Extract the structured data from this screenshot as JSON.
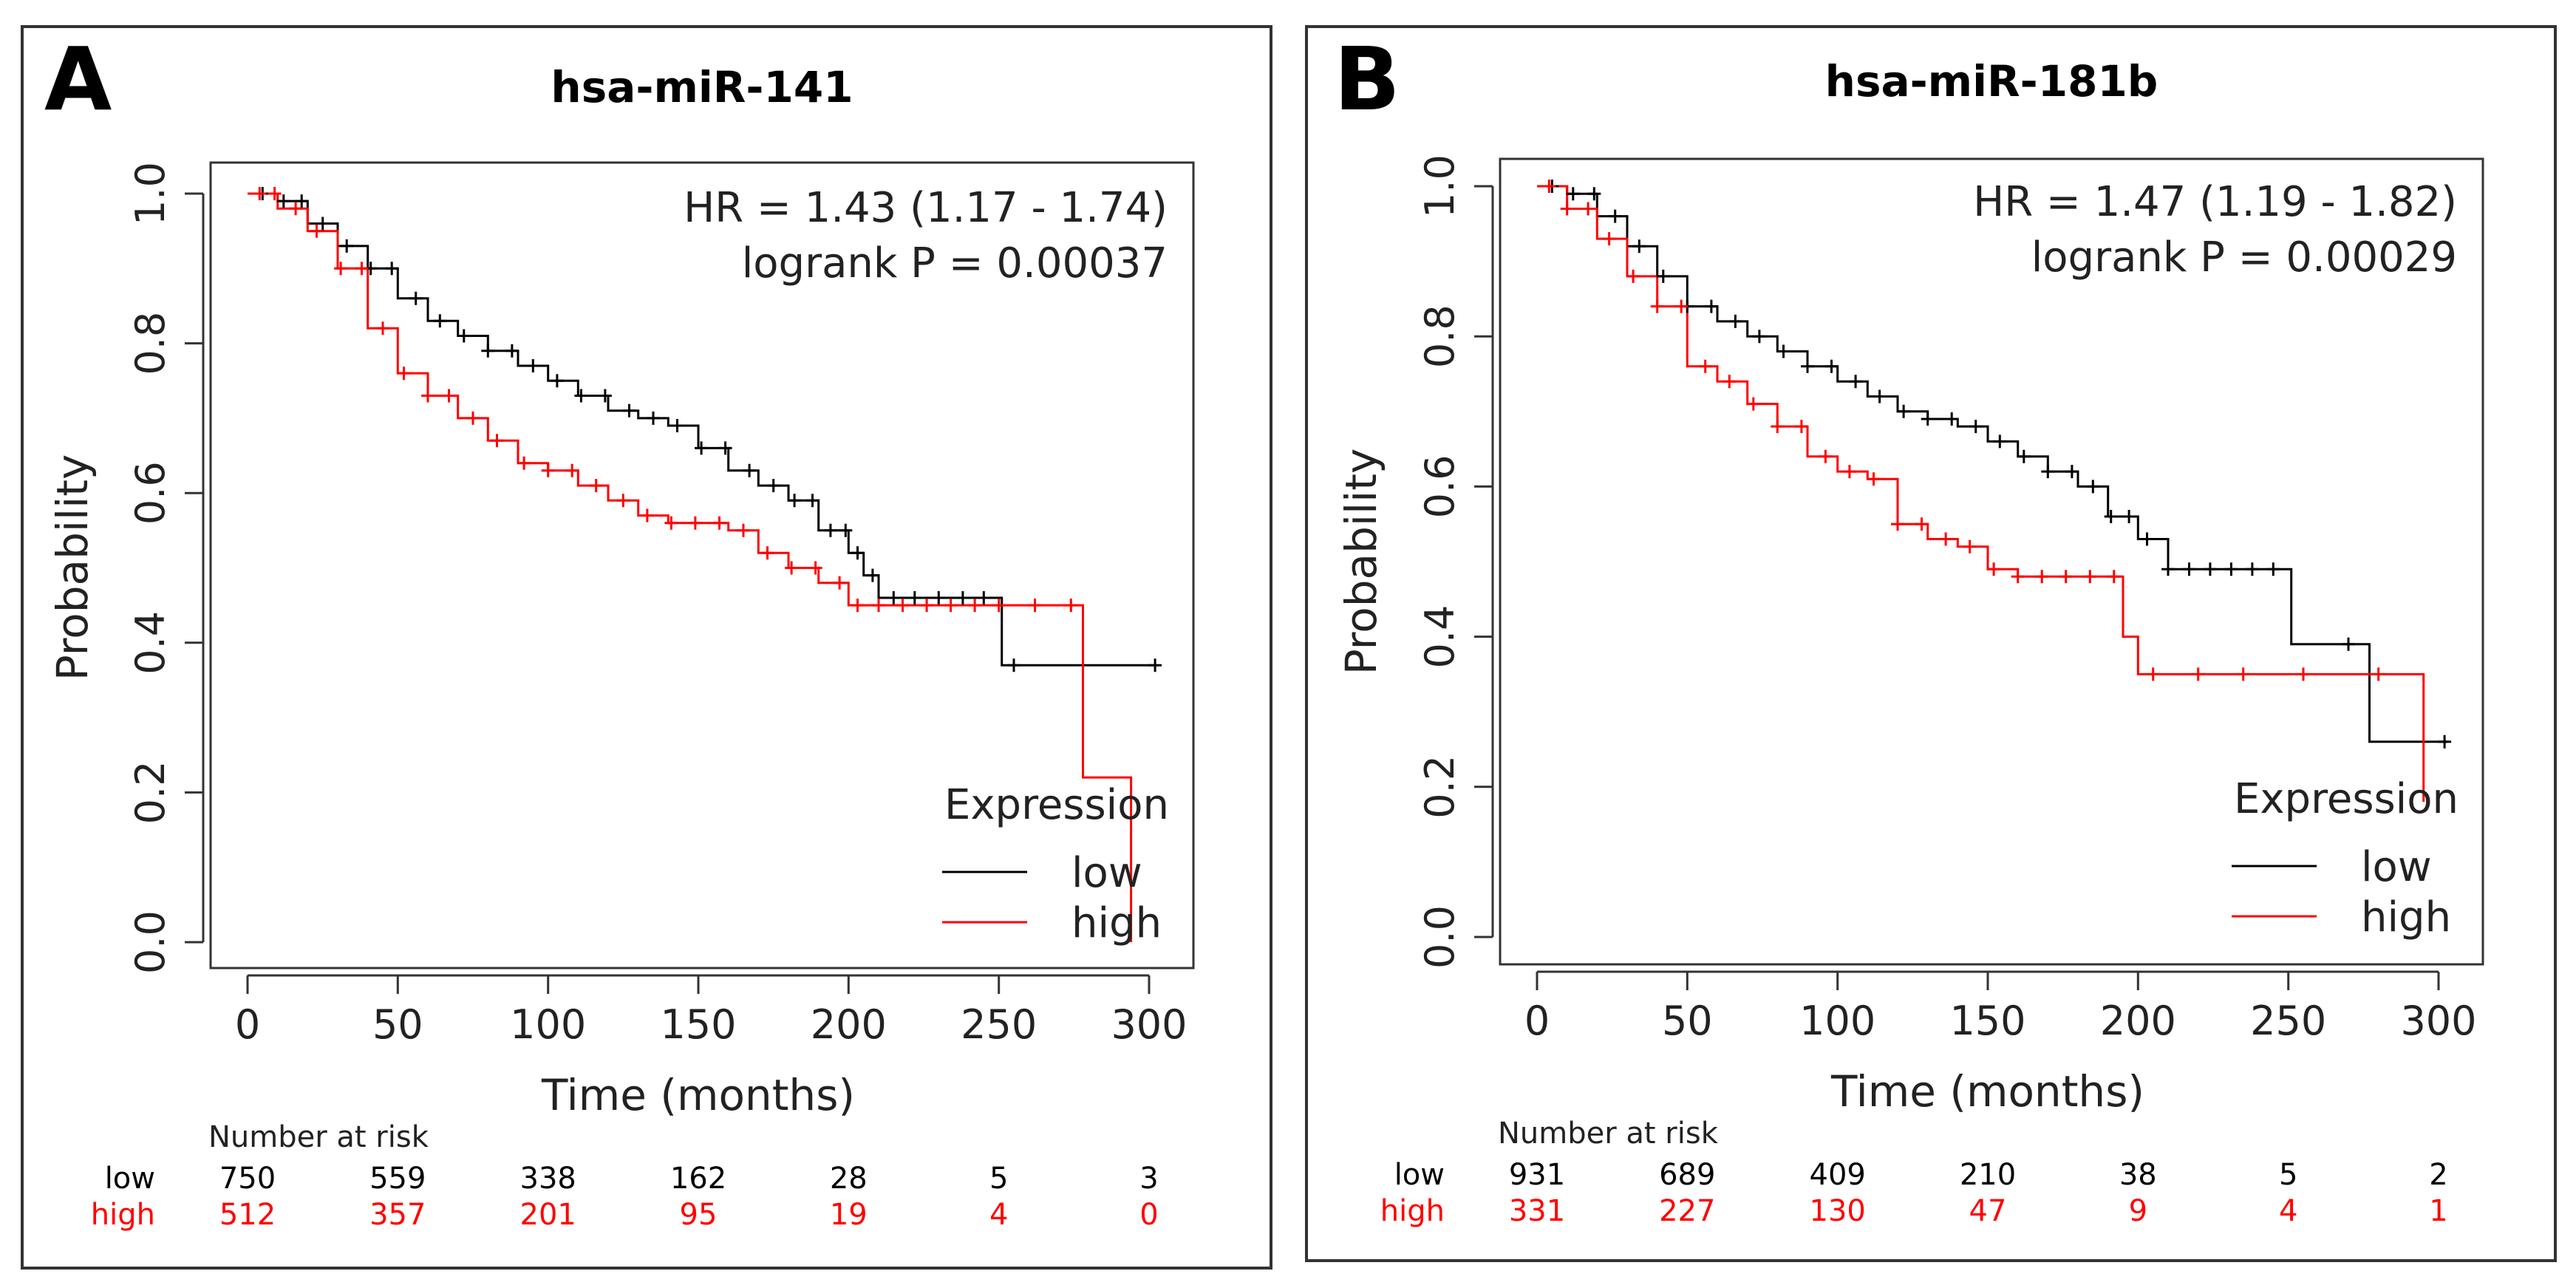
{
  "chart_data": [
    {
      "type": "line",
      "panel_letter": "A",
      "title": "hsa-miR-141",
      "xlabel": "Time (months)",
      "ylabel": "Probability",
      "xlim": [
        0,
        300
      ],
      "ylim": [
        0,
        1
      ],
      "xticks": [
        "0",
        "50",
        "100",
        "150",
        "200",
        "250",
        "300"
      ],
      "yticks": [
        "0.0",
        "0.2",
        "0.4",
        "0.6",
        "0.8",
        "1.0"
      ],
      "hr_text": "HR = 1.43 (1.17 - 1.74)",
      "p_text": "logrank P = 0.00037",
      "legend_title": "Expression",
      "legend_position": "bottom-right",
      "series": [
        {
          "name": "low",
          "color": "#000000",
          "x": [
            0,
            10,
            20,
            30,
            40,
            50,
            60,
            70,
            80,
            90,
            100,
            110,
            120,
            130,
            140,
            150,
            160,
            170,
            180,
            190,
            200,
            205,
            210,
            250,
            251,
            303
          ],
          "y": [
            1.0,
            0.99,
            0.96,
            0.93,
            0.9,
            0.86,
            0.83,
            0.81,
            0.79,
            0.77,
            0.75,
            0.73,
            0.71,
            0.7,
            0.69,
            0.66,
            0.63,
            0.61,
            0.59,
            0.55,
            0.52,
            0.49,
            0.46,
            0.46,
            0.37,
            0.37
          ],
          "censor_x": [
            5,
            12,
            18,
            25,
            33,
            41,
            48,
            56,
            64,
            72,
            80,
            88,
            95,
            103,
            111,
            119,
            127,
            135,
            143,
            151,
            159,
            167,
            175,
            182,
            188,
            194,
            199,
            203,
            208,
            215,
            222,
            230,
            238,
            245,
            255,
            302
          ]
        },
        {
          "name": "high",
          "color": "#ff0000",
          "x": [
            0,
            10,
            20,
            30,
            40,
            50,
            60,
            70,
            80,
            90,
            100,
            110,
            120,
            130,
            140,
            150,
            160,
            170,
            180,
            190,
            200,
            277,
            278,
            293,
            294
          ],
          "y": [
            1.0,
            0.98,
            0.95,
            0.9,
            0.82,
            0.76,
            0.73,
            0.7,
            0.67,
            0.64,
            0.63,
            0.61,
            0.59,
            0.57,
            0.56,
            0.56,
            0.55,
            0.52,
            0.5,
            0.48,
            0.45,
            0.45,
            0.22,
            0.22,
            0.0
          ],
          "censor_x": [
            4,
            9,
            16,
            23,
            31,
            38,
            45,
            52,
            60,
            67,
            75,
            83,
            92,
            100,
            108,
            116,
            125,
            133,
            141,
            149,
            157,
            165,
            173,
            181,
            189,
            197,
            203,
            210,
            218,
            226,
            234,
            242,
            250,
            262,
            274
          ]
        }
      ],
      "risk_table": {
        "title": "Number at risk",
        "rows": [
          {
            "label": "low",
            "color": "#000000",
            "values": [
              "750",
              "559",
              "338",
              "162",
              "28",
              "5",
              "3"
            ]
          },
          {
            "label": "high",
            "color": "#ff0000",
            "values": [
              "512",
              "357",
              "201",
              "95",
              "19",
              "4",
              "0"
            ]
          }
        ]
      }
    },
    {
      "type": "line",
      "panel_letter": "B",
      "title": "hsa-miR-181b",
      "xlabel": "Time (months)",
      "ylabel": "Probability",
      "xlim": [
        0,
        300
      ],
      "ylim": [
        0,
        1
      ],
      "xticks": [
        "0",
        "50",
        "100",
        "150",
        "200",
        "250",
        "300"
      ],
      "yticks": [
        "0.0",
        "0.2",
        "0.4",
        "0.6",
        "0.8",
        "1.0"
      ],
      "hr_text": "HR = 1.47 (1.19 - 1.82)",
      "p_text": "logrank P = 0.00029",
      "legend_title": "Expression",
      "legend_position": "bottom-right",
      "series": [
        {
          "name": "low",
          "color": "#000000",
          "x": [
            0,
            10,
            20,
            30,
            40,
            50,
            60,
            70,
            80,
            90,
            100,
            110,
            120,
            130,
            140,
            150,
            160,
            170,
            180,
            190,
            200,
            210,
            250,
            251,
            276,
            277,
            303
          ],
          "y": [
            1.0,
            0.99,
            0.96,
            0.92,
            0.88,
            0.84,
            0.82,
            0.8,
            0.78,
            0.76,
            0.74,
            0.72,
            0.7,
            0.69,
            0.68,
            0.66,
            0.64,
            0.62,
            0.6,
            0.56,
            0.53,
            0.49,
            0.49,
            0.39,
            0.39,
            0.26,
            0.26
          ],
          "censor_x": [
            5,
            12,
            19,
            26,
            34,
            42,
            50,
            58,
            66,
            74,
            82,
            90,
            98,
            106,
            114,
            122,
            130,
            138,
            146,
            154,
            162,
            170,
            178,
            185,
            191,
            197,
            203,
            210,
            217,
            224,
            231,
            238,
            245,
            270,
            302
          ]
        },
        {
          "name": "high",
          "color": "#ff0000",
          "x": [
            0,
            10,
            20,
            30,
            40,
            50,
            60,
            70,
            80,
            90,
            100,
            110,
            120,
            130,
            140,
            150,
            160,
            170,
            180,
            190,
            195,
            200,
            294,
            295
          ],
          "y": [
            1.0,
            0.97,
            0.93,
            0.88,
            0.84,
            0.76,
            0.74,
            0.71,
            0.68,
            0.64,
            0.62,
            0.61,
            0.55,
            0.53,
            0.52,
            0.49,
            0.48,
            0.48,
            0.48,
            0.48,
            0.4,
            0.35,
            0.35,
            0.18
          ],
          "censor_x": [
            4,
            10,
            17,
            24,
            32,
            40,
            48,
            56,
            64,
            72,
            80,
            88,
            96,
            104,
            112,
            120,
            128,
            136,
            144,
            152,
            160,
            168,
            176,
            184,
            192,
            205,
            220,
            235,
            255,
            280
          ]
        }
      ],
      "risk_table": {
        "title": "Number at risk",
        "rows": [
          {
            "label": "low",
            "color": "#000000",
            "values": [
              "931",
              "689",
              "409",
              "210",
              "38",
              "5",
              "2"
            ]
          },
          {
            "label": "high",
            "color": "#ff0000",
            "values": [
              "331",
              "227",
              "130",
              "47",
              "9",
              "4",
              "1"
            ]
          }
        ]
      }
    }
  ]
}
